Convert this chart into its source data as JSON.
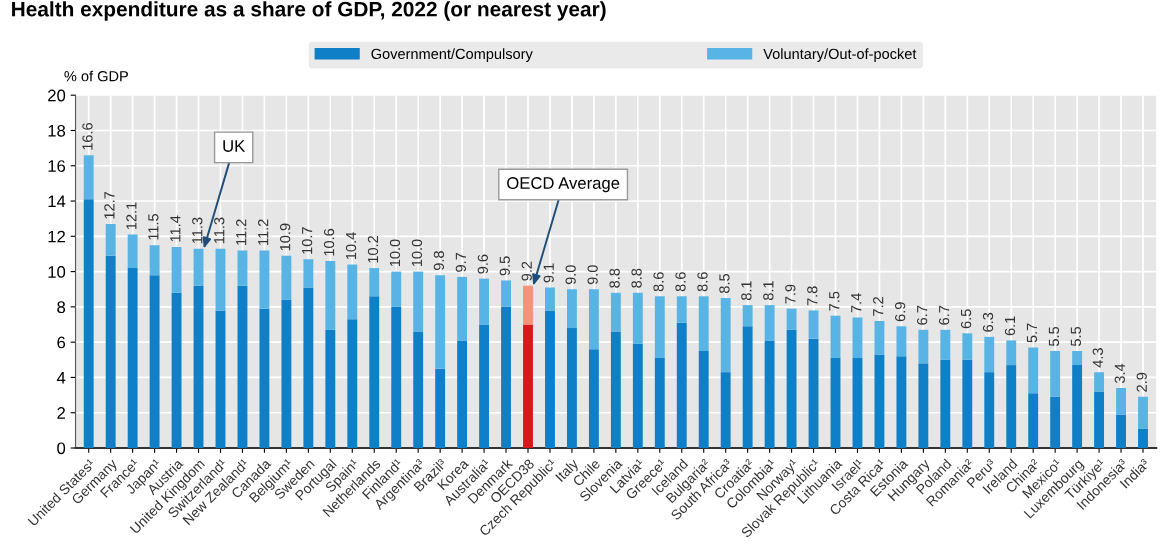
{
  "chart_data": {
    "type": "bar",
    "stacked": true,
    "title": "Health expenditure as a share of GDP, 2022 (or nearest year)",
    "ylabel": "% of GDP",
    "categories": [
      "United States¹",
      "Germany",
      "France¹",
      "Japan¹",
      "Austria",
      "United Kingdom",
      "Switzerland¹",
      "New Zealand¹",
      "Canada",
      "Belgium¹",
      "Sweden",
      "Portugal",
      "Spain¹",
      "Netherlands",
      "Finland¹",
      "Argentina³",
      "Brazil³",
      "Korea",
      "Australia¹",
      "Denmark",
      "OECD38",
      "Czech Republic¹",
      "Italy",
      "Chile",
      "Slovenia",
      "Latvia¹",
      "Greece¹",
      "Iceland",
      "Bulgaria²",
      "South Africa³",
      "Croatia²",
      "Colombia¹",
      "Norway¹",
      "Slovak Republic¹",
      "Lithuania",
      "Israel¹",
      "Costa Rica¹",
      "Estonia",
      "Hungary",
      "Poland",
      "Romania²",
      "Peru³",
      "Ireland",
      "China²",
      "Mexico¹",
      "Luxembourg",
      "Türkiye¹",
      "Indonesia³",
      "India³"
    ],
    "series": [
      {
        "name": "Government/Compulsory",
        "color": "#0f7fc8",
        "colors": [
          "#0f7fc8",
          "#0f7fc8",
          "#0f7fc8",
          "#0f7fc8",
          "#0f7fc8",
          "#0f7fc8",
          "#0f7fc8",
          "#0f7fc8",
          "#0f7fc8",
          "#0f7fc8",
          "#0f7fc8",
          "#0f7fc8",
          "#0f7fc8",
          "#0f7fc8",
          "#0f7fc8",
          "#0f7fc8",
          "#0f7fc8",
          "#0f7fc8",
          "#0f7fc8",
          "#0f7fc8",
          "#d7191c",
          "#0f7fc8",
          "#0f7fc8",
          "#0f7fc8",
          "#0f7fc8",
          "#0f7fc8",
          "#0f7fc8",
          "#0f7fc8",
          "#0f7fc8",
          "#0f7fc8",
          "#0f7fc8",
          "#0f7fc8",
          "#0f7fc8",
          "#0f7fc8",
          "#0f7fc8",
          "#0f7fc8",
          "#0f7fc8",
          "#0f7fc8",
          "#0f7fc8",
          "#0f7fc8",
          "#0f7fc8",
          "#0f7fc8",
          "#0f7fc8",
          "#0f7fc8",
          "#0f7fc8",
          "#0f7fc8",
          "#0f7fc8",
          "#0f7fc8",
          "#0f7fc8"
        ],
        "values": [
          14.1,
          10.9,
          10.2,
          9.8,
          8.8,
          9.2,
          7.8,
          9.2,
          7.9,
          8.4,
          9.1,
          6.7,
          7.3,
          8.6,
          8.0,
          6.6,
          4.5,
          6.1,
          7.0,
          8.0,
          7.0,
          7.8,
          6.8,
          5.6,
          6.6,
          5.9,
          5.1,
          7.1,
          5.5,
          4.3,
          6.9,
          6.1,
          6.7,
          6.2,
          5.1,
          5.1,
          5.3,
          5.2,
          4.8,
          5.0,
          5.0,
          4.3,
          4.7,
          3.1,
          2.9,
          4.7,
          3.2,
          1.9,
          1.1
        ]
      },
      {
        "name": "Voluntary/Out-of-pocket",
        "color": "#58b4e4",
        "colors": [
          "#58b4e4",
          "#58b4e4",
          "#58b4e4",
          "#58b4e4",
          "#58b4e4",
          "#58b4e4",
          "#58b4e4",
          "#58b4e4",
          "#58b4e4",
          "#58b4e4",
          "#58b4e4",
          "#58b4e4",
          "#58b4e4",
          "#58b4e4",
          "#58b4e4",
          "#58b4e4",
          "#58b4e4",
          "#58b4e4",
          "#58b4e4",
          "#58b4e4",
          "#f4937a",
          "#58b4e4",
          "#58b4e4",
          "#58b4e4",
          "#58b4e4",
          "#58b4e4",
          "#58b4e4",
          "#58b4e4",
          "#58b4e4",
          "#58b4e4",
          "#58b4e4",
          "#58b4e4",
          "#58b4e4",
          "#58b4e4",
          "#58b4e4",
          "#58b4e4",
          "#58b4e4",
          "#58b4e4",
          "#58b4e4",
          "#58b4e4",
          "#58b4e4",
          "#58b4e4",
          "#58b4e4",
          "#58b4e4",
          "#58b4e4",
          "#58b4e4",
          "#58b4e4",
          "#58b4e4",
          "#58b4e4"
        ],
        "values": [
          2.5,
          1.8,
          1.9,
          1.7,
          2.6,
          2.1,
          3.5,
          2.0,
          3.3,
          2.5,
          1.6,
          3.9,
          3.1,
          1.6,
          2.0,
          3.4,
          5.3,
          3.6,
          2.6,
          1.5,
          2.2,
          1.3,
          2.2,
          3.4,
          2.2,
          2.9,
          3.5,
          1.5,
          3.1,
          4.2,
          1.2,
          2.0,
          1.2,
          1.6,
          2.4,
          2.3,
          1.9,
          1.7,
          1.9,
          1.7,
          1.5,
          2.0,
          1.4,
          2.6,
          2.6,
          0.8,
          1.1,
          1.5,
          1.8
        ]
      }
    ],
    "totals": [
      "16.6",
      "12.7",
      "12.1",
      "11.5",
      "11.4",
      "11.3",
      "11.3",
      "11.2",
      "11.2",
      "10.9",
      "10.7",
      "10.6",
      "10.4",
      "10.2",
      "10.0",
      "10.0",
      "9.8",
      "9.7",
      "9.6",
      "9.5",
      "9.2",
      "9.1",
      "9.0",
      "9.0",
      "8.8",
      "8.8",
      "8.6",
      "8.6",
      "8.6",
      "8.5",
      "8.1",
      "8.1",
      "7.9",
      "7.8",
      "7.5",
      "7.4",
      "7.2",
      "6.9",
      "6.7",
      "6.7",
      "6.5",
      "6.3",
      "6.1",
      "5.7",
      "5.5",
      "5.5",
      "4.3",
      "3.4",
      "2.9"
    ],
    "ylim": [
      0,
      20
    ],
    "yticks": [
      0,
      2,
      4,
      6,
      8,
      10,
      12,
      14,
      16,
      18,
      20
    ],
    "grid": true,
    "legend": "top",
    "annotations": [
      {
        "text": "UK",
        "x": "United Kingdom",
        "y": 11.3
      },
      {
        "text": "OECD Average",
        "x": "OECD38",
        "y": 9.2
      }
    ]
  }
}
